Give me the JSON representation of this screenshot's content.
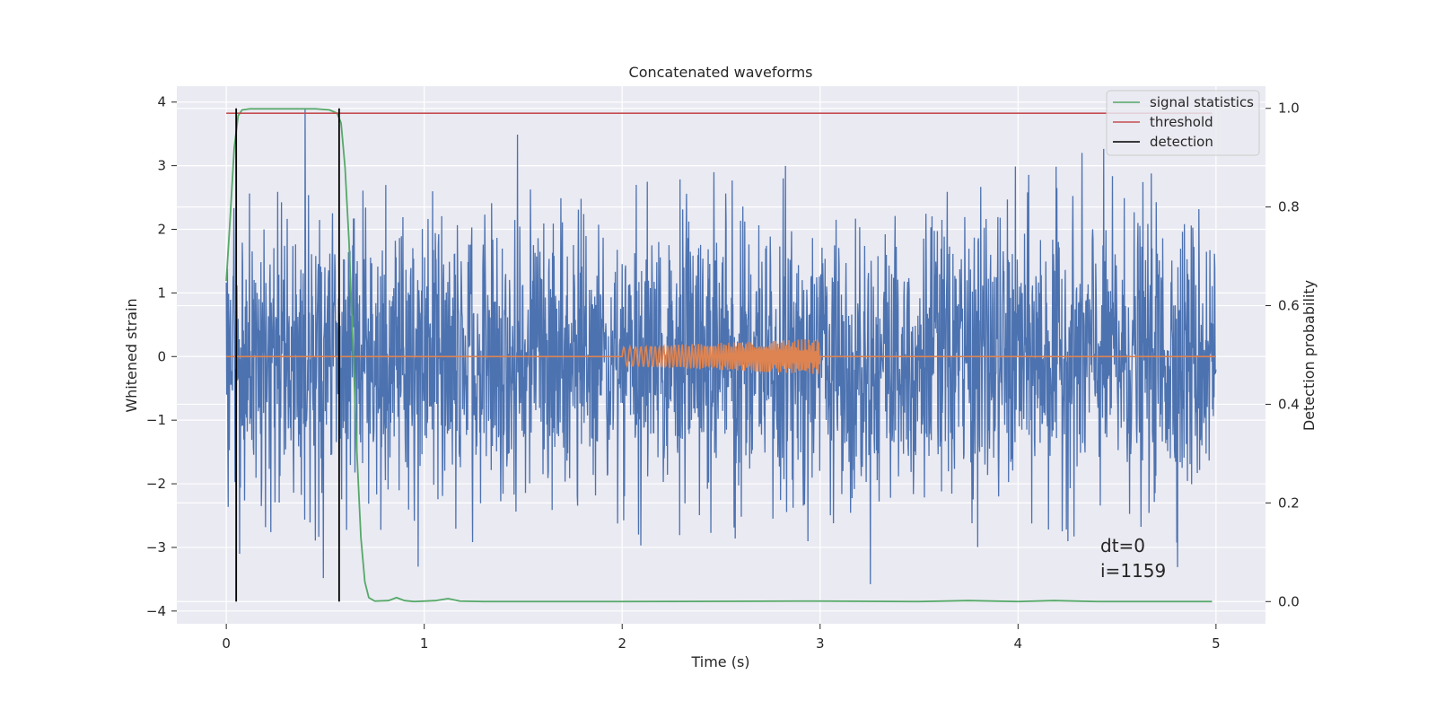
{
  "chart_data": {
    "type": "line",
    "title": "Concatenated waveforms",
    "xlabel": "Time (s)",
    "ylabel_left": "Whitened strain",
    "ylabel_right": "Detection probability",
    "xlim": [
      -0.25,
      5.25
    ],
    "ylim_left": [
      -4.2,
      4.25
    ],
    "ylim_right": [
      -0.045,
      1.045
    ],
    "x_ticks": [
      0,
      1,
      2,
      3,
      4,
      5
    ],
    "x_tick_labels": [
      "0",
      "1",
      "2",
      "3",
      "4",
      "5"
    ],
    "y_left_ticks": [
      4,
      3,
      2,
      1,
      0,
      -1,
      -2,
      -3,
      -4
    ],
    "y_left_tick_labels": [
      "4",
      "3",
      "2",
      "1",
      "0",
      "−1",
      "−2",
      "−3",
      "−4"
    ],
    "y_right_ticks": [
      1.0,
      0.8,
      0.6,
      0.4,
      0.2,
      0.0
    ],
    "y_right_tick_labels": [
      "1.0",
      "0.8",
      "0.6",
      "0.4",
      "0.2",
      "0.0"
    ],
    "grid": true,
    "legend_position": "top-right",
    "background_color": "#eaeaf2",
    "series": [
      {
        "name": "",
        "axis": "left",
        "color": "#4c72b0",
        "kind": "noise",
        "x_range": [
          0,
          5
        ],
        "typical_amplitude": 1.1,
        "peak_range": [
          -3.7,
          3.9
        ]
      },
      {
        "name": "",
        "axis": "left",
        "color": "#dd8452",
        "kind": "chirp",
        "x_range": [
          0,
          5
        ],
        "active_range": [
          2,
          3
        ],
        "amplitude_start": 0.15,
        "amplitude_end": 0.28
      },
      {
        "name": "signal statistics",
        "axis": "right",
        "color": "#55a868",
        "points": [
          [
            0.0,
            0.65
          ],
          [
            0.02,
            0.78
          ],
          [
            0.04,
            0.92
          ],
          [
            0.06,
            0.985
          ],
          [
            0.08,
            0.997
          ],
          [
            0.12,
            0.999
          ],
          [
            0.3,
            0.999
          ],
          [
            0.45,
            0.999
          ],
          [
            0.52,
            0.997
          ],
          [
            0.56,
            0.99
          ],
          [
            0.58,
            0.97
          ],
          [
            0.6,
            0.88
          ],
          [
            0.62,
            0.73
          ],
          [
            0.64,
            0.52
          ],
          [
            0.66,
            0.3
          ],
          [
            0.68,
            0.13
          ],
          [
            0.7,
            0.04
          ],
          [
            0.72,
            0.008
          ],
          [
            0.75,
            0.001
          ],
          [
            0.82,
            0.002
          ],
          [
            0.86,
            0.008
          ],
          [
            0.9,
            0.002
          ],
          [
            0.95,
            0.0
          ],
          [
            1.06,
            0.002
          ],
          [
            1.12,
            0.006
          ],
          [
            1.18,
            0.001
          ],
          [
            1.3,
            0.0
          ],
          [
            2.0,
            0.0
          ],
          [
            3.0,
            0.001
          ],
          [
            3.5,
            0.0
          ],
          [
            3.75,
            0.002
          ],
          [
            4.0,
            0.0
          ],
          [
            4.18,
            0.002
          ],
          [
            4.4,
            0.0
          ],
          [
            4.98,
            0.0
          ]
        ]
      },
      {
        "name": "threshold",
        "axis": "right",
        "color": "#c44e52",
        "points": [
          [
            0.0,
            0.99
          ],
          [
            4.98,
            0.99
          ]
        ]
      },
      {
        "name": "detection",
        "axis": "right",
        "color": "#000000",
        "kind": "vlines",
        "x": [
          0.05,
          0.57
        ],
        "y_range": [
          0.0,
          1.0
        ]
      }
    ],
    "annotations": [
      "dt=0",
      "i=1159"
    ]
  }
}
